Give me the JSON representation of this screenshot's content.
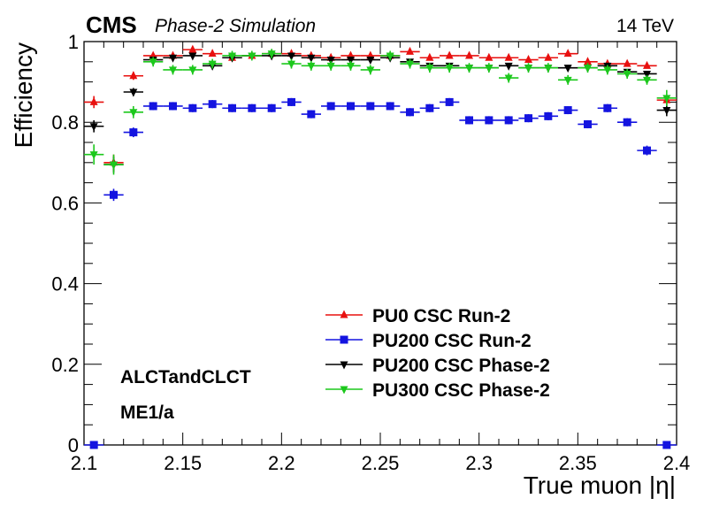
{
  "header": {
    "experiment": "CMS",
    "subtitle": "Phase-2 Simulation",
    "energy": "14 TeV"
  },
  "annotations": {
    "line1": "ALCTandCLCT",
    "line2": "ME1/a"
  },
  "chart_data": {
    "type": "scatter",
    "xlabel": "True muon |η|",
    "ylabel": "Efficiency",
    "xlim": [
      2.1,
      2.4
    ],
    "ylim": [
      0,
      1
    ],
    "xticks": [
      "2.1",
      "2.15",
      "2.2",
      "2.25",
      "2.3",
      "2.35",
      "2.4"
    ],
    "yticks": [
      "0",
      "0.2",
      "0.4",
      "0.6",
      "0.8",
      "1"
    ],
    "grid": false,
    "legend_position": "bottom-center",
    "x": [
      2.105,
      2.115,
      2.125,
      2.135,
      2.145,
      2.155,
      2.165,
      2.175,
      2.185,
      2.195,
      2.205,
      2.215,
      2.225,
      2.235,
      2.245,
      2.255,
      2.265,
      2.275,
      2.285,
      2.295,
      2.305,
      2.315,
      2.325,
      2.335,
      2.345,
      2.355,
      2.365,
      2.375,
      2.385,
      2.395
    ],
    "x_error": 0.005,
    "series": [
      {
        "name": "PU0 CSC Run-2",
        "color": "#e8100f",
        "marker": "triangle-up",
        "values": [
          0.85,
          0.7,
          0.915,
          0.965,
          0.965,
          0.98,
          0.97,
          0.96,
          0.965,
          0.97,
          0.97,
          0.965,
          0.96,
          0.965,
          0.965,
          0.965,
          0.975,
          0.96,
          0.965,
          0.965,
          0.96,
          0.96,
          0.955,
          0.96,
          0.97,
          0.95,
          0.945,
          0.945,
          0.94,
          0.855
        ],
        "errors": [
          0.015,
          0.02,
          0.01,
          0.007,
          0.006,
          0.006,
          0.006,
          0.006,
          0.006,
          0.006,
          0.006,
          0.006,
          0.006,
          0.006,
          0.006,
          0.006,
          0.006,
          0.006,
          0.006,
          0.006,
          0.006,
          0.006,
          0.006,
          0.006,
          0.006,
          0.006,
          0.006,
          0.006,
          0.006,
          0.012
        ]
      },
      {
        "name": "PU200 CSC Run-2",
        "color": "#1414e0",
        "marker": "square",
        "values": [
          0.0,
          0.62,
          0.775,
          0.84,
          0.84,
          0.835,
          0.845,
          0.835,
          0.835,
          0.835,
          0.85,
          0.82,
          0.84,
          0.84,
          0.84,
          0.84,
          0.825,
          0.835,
          0.85,
          0.805,
          0.805,
          0.805,
          0.81,
          0.815,
          0.83,
          0.795,
          0.835,
          0.8,
          0.73,
          0.0
        ],
        "errors": [
          0.0,
          0.015,
          0.012,
          0.01,
          0.01,
          0.01,
          0.01,
          0.01,
          0.01,
          0.01,
          0.01,
          0.01,
          0.01,
          0.01,
          0.01,
          0.01,
          0.01,
          0.01,
          0.01,
          0.01,
          0.01,
          0.01,
          0.01,
          0.01,
          0.01,
          0.01,
          0.01,
          0.01,
          0.012,
          0.0
        ]
      },
      {
        "name": "PU200 CSC Phase-2",
        "color": "#000000",
        "marker": "triangle-down",
        "values": [
          0.79,
          0.695,
          0.875,
          0.955,
          0.96,
          0.965,
          0.94,
          0.96,
          0.965,
          0.965,
          0.965,
          0.96,
          0.955,
          0.955,
          0.955,
          0.96,
          0.95,
          0.94,
          0.94,
          0.935,
          0.935,
          0.94,
          0.935,
          0.935,
          0.935,
          0.935,
          0.94,
          0.925,
          0.92,
          0.83
        ],
        "errors": [
          0.015,
          0.02,
          0.01,
          0.007,
          0.006,
          0.006,
          0.006,
          0.006,
          0.006,
          0.006,
          0.006,
          0.006,
          0.006,
          0.006,
          0.006,
          0.006,
          0.006,
          0.006,
          0.006,
          0.006,
          0.006,
          0.006,
          0.006,
          0.006,
          0.006,
          0.006,
          0.006,
          0.006,
          0.006,
          0.015
        ]
      },
      {
        "name": "PU300 CSC Phase-2",
        "color": "#1cc81c",
        "marker": "triangle-down",
        "values": [
          0.72,
          0.695,
          0.825,
          0.95,
          0.93,
          0.93,
          0.945,
          0.965,
          0.965,
          0.97,
          0.945,
          0.94,
          0.94,
          0.94,
          0.93,
          0.965,
          0.945,
          0.935,
          0.935,
          0.935,
          0.935,
          0.91,
          0.935,
          0.935,
          0.905,
          0.935,
          0.93,
          0.92,
          0.905,
          0.86
        ],
        "errors": [
          0.025,
          0.025,
          0.015,
          0.012,
          0.012,
          0.012,
          0.012,
          0.012,
          0.012,
          0.012,
          0.012,
          0.012,
          0.012,
          0.012,
          0.012,
          0.012,
          0.012,
          0.012,
          0.012,
          0.012,
          0.012,
          0.012,
          0.012,
          0.012,
          0.012,
          0.012,
          0.012,
          0.012,
          0.012,
          0.02
        ]
      }
    ]
  }
}
